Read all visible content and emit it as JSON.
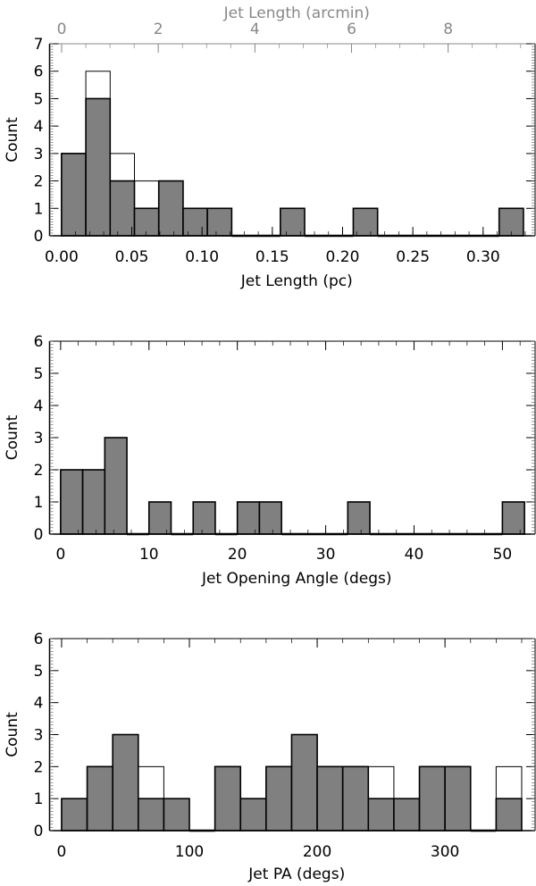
{
  "chart_data": [
    {
      "type": "bar",
      "subtype": "histogram",
      "xlabel": "Jet Length (pc)",
      "ylabel": "Count",
      "top_xlabel": "Jet Length (arcmin)",
      "xlim": [
        -0.0085,
        0.337
      ],
      "ylim": [
        0,
        7
      ],
      "top_xlim_arcmin": [
        -0.25,
        9.8
      ],
      "bin_start": 0,
      "bin_width": 0.0173,
      "counts_filled": [
        3,
        5,
        2,
        1,
        2,
        1,
        1,
        0,
        0,
        1,
        0,
        0,
        1,
        0,
        0,
        0,
        0,
        0,
        1
      ],
      "counts_outline": [
        3,
        6,
        3,
        2,
        2,
        1,
        1,
        0,
        0,
        1,
        0,
        0,
        1,
        0,
        0,
        0,
        0,
        0,
        1
      ],
      "xticks": [
        "0.00",
        "0.05",
        "0.10",
        "0.15",
        "0.20",
        "0.25",
        "0.30"
      ],
      "xtick_values": [
        0,
        0.05,
        0.1,
        0.15,
        0.2,
        0.25,
        0.3
      ],
      "top_xticks": [
        "0",
        "2",
        "4",
        "6",
        "8"
      ],
      "top_xtick_values": [
        0,
        2,
        4,
        6,
        8
      ],
      "yticks": [
        "0",
        "1",
        "2",
        "3",
        "4",
        "5",
        "6",
        "7"
      ],
      "grid": false,
      "fill_color": "#808080",
      "top_axis_color": "#888888"
    },
    {
      "type": "bar",
      "subtype": "histogram",
      "xlabel": "Jet Opening Angle (degs)",
      "ylabel": "Count",
      "xlim": [
        -1.25,
        53.7
      ],
      "ylim": [
        0,
        6
      ],
      "bin_start": 0,
      "bin_width": 2.5,
      "counts_filled": [
        2,
        2,
        3,
        0,
        1,
        0,
        1,
        0,
        1,
        1,
        0,
        0,
        0,
        1,
        0,
        0,
        0,
        0,
        0,
        0,
        1
      ],
      "counts_outline": [
        2,
        2,
        3,
        0,
        1,
        0,
        1,
        0,
        1,
        1,
        0,
        0,
        0,
        1,
        0,
        0,
        0,
        0,
        0,
        0,
        1
      ],
      "xticks": [
        "0",
        "10",
        "20",
        "30",
        "40",
        "50"
      ],
      "xtick_values": [
        0,
        10,
        20,
        30,
        40,
        50
      ],
      "yticks": [
        "0",
        "1",
        "2",
        "3",
        "4",
        "5",
        "6"
      ],
      "grid": false,
      "fill_color": "#808080"
    },
    {
      "type": "bar",
      "subtype": "histogram",
      "xlabel": "Jet PA (degs)",
      "ylabel": "Count",
      "xlim": [
        -9.4,
        370.5
      ],
      "ylim": [
        0,
        6
      ],
      "bin_start": 0,
      "bin_width": 20,
      "counts_filled": [
        1,
        2,
        3,
        1,
        1,
        0,
        2,
        1,
        2,
        3,
        2,
        2,
        1,
        1,
        2,
        2,
        0,
        1
      ],
      "counts_outline": [
        1,
        2,
        3,
        2,
        1,
        0,
        2,
        1,
        2,
        3,
        2,
        2,
        2,
        1,
        2,
        2,
        0,
        2
      ],
      "xticks": [
        "0",
        "100",
        "200",
        "300"
      ],
      "xtick_values": [
        0,
        100,
        200,
        300
      ],
      "yticks": [
        "0",
        "1",
        "2",
        "3",
        "4",
        "5",
        "6"
      ],
      "grid": false,
      "fill_color": "#808080"
    }
  ]
}
